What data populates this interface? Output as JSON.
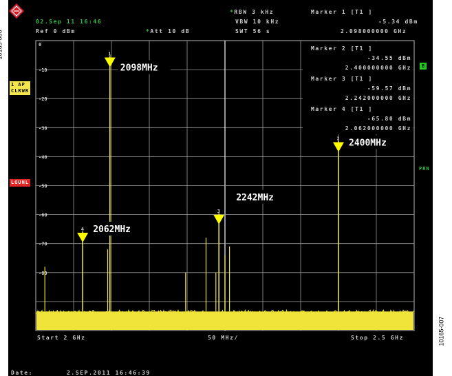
{
  "header": {
    "rbw": "RBW 3 kHz",
    "vbw": "VBW 10 kHz",
    "swt": "SWT 56 s",
    "date_time": "02.Sep 11 16:46",
    "ref": "Ref  0 dBm",
    "att": "Att  10 dB",
    "marker1_title": "Marker 1 [T1 ]",
    "marker1_level": "-5.34 dBm",
    "marker1_freq": "2.098000000 GHz"
  },
  "marker_table": [
    {
      "title": "Marker 2 [T1 ]",
      "level": "-34.55 dBm",
      "freq": "2.400000000 GHz"
    },
    {
      "title": "Marker 3 [T1 ]",
      "level": "-59.57 dBm",
      "freq": "2.242000000 GHz"
    },
    {
      "title": "Marker 4 [T1 ]",
      "level": "-65.80 dBm",
      "freq": "2.062000000 GHz"
    }
  ],
  "side_labels": {
    "ap_line1": "1 AP",
    "ap_line2": "CLRWR",
    "loun": "LOUNL",
    "r_badge": "B",
    "prn": "PRN"
  },
  "footer": {
    "start": "Start 2 GHz",
    "span": "50 MHz/",
    "stop": "Stop 2.5 GHz",
    "date_label": "Date:",
    "date_value": "2.SEP.2011  16:46:39"
  },
  "side_captions": {
    "left": "10165-006",
    "right": "10165-007"
  },
  "colors": {
    "trace": "#f0e43a",
    "grid": "#9a9a9a",
    "background": "#000000",
    "marker": "#ffff00",
    "callout_bg": "#000000",
    "callout_text": "#ffffff"
  },
  "chart_data": {
    "type": "line",
    "xlabel": "",
    "ylabel": "",
    "xlim_ghz": [
      2.0,
      2.5
    ],
    "ylim_dbm": [
      -100,
      0
    ],
    "y_tick_labels": [
      "0",
      "-10",
      "-20",
      "-30",
      "-40",
      "-50",
      "-60",
      "-70",
      "-80"
    ],
    "grid": true,
    "noise_floor_dbm": -92,
    "spurs": [
      {
        "freq_ghz": 2.012,
        "level_dbm": -78
      },
      {
        "freq_ghz": 2.095,
        "level_dbm": -72
      },
      {
        "freq_ghz": 2.198,
        "level_dbm": -80
      },
      {
        "freq_ghz": 2.225,
        "level_dbm": -68
      },
      {
        "freq_ghz": 2.238,
        "level_dbm": -80
      },
      {
        "freq_ghz": 2.25,
        "level_dbm": -74
      },
      {
        "freq_ghz": 2.256,
        "level_dbm": -71
      }
    ],
    "markers": [
      {
        "num": "1",
        "freq_ghz": 2.098,
        "level_dbm": -5.34,
        "label": "2098MHz"
      },
      {
        "num": "2",
        "freq_ghz": 2.4,
        "level_dbm": -34.55,
        "label": "2400MHz"
      },
      {
        "num": "3",
        "freq_ghz": 2.242,
        "level_dbm": -59.57,
        "label": "2242MHz"
      },
      {
        "num": "4",
        "freq_ghz": 2.062,
        "level_dbm": -65.8,
        "label": "2062MHz"
      }
    ]
  }
}
